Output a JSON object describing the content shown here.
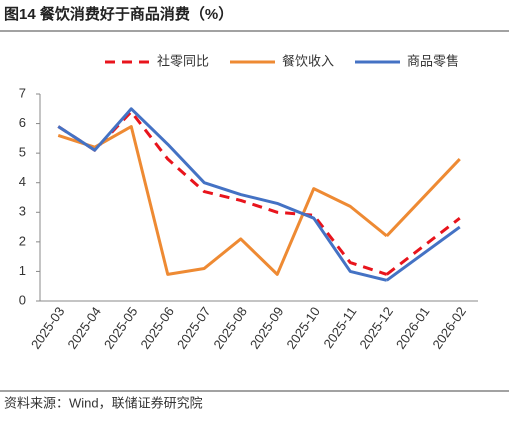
{
  "chart_data": {
    "type": "line",
    "title": "图14 餐饮消费好于商品消费（%）",
    "source": "资料来源：Wind，联储证券研究院",
    "categories": [
      "2025-03",
      "2025-04",
      "2025-05",
      "2025-06",
      "2025-07",
      "2025-08",
      "2025-09",
      "2025-10",
      "2025-11",
      "2025-12",
      "2026-01",
      "2026-02"
    ],
    "series": [
      {
        "name": "社零同比",
        "color": "#e8141c",
        "dash": true,
        "values": [
          5.9,
          5.1,
          6.4,
          4.8,
          3.7,
          3.4,
          3.0,
          2.9,
          1.3,
          0.9,
          null,
          2.8
        ]
      },
      {
        "name": "餐饮收入",
        "color": "#ee8a33",
        "dash": false,
        "values": [
          5.6,
          5.2,
          5.9,
          0.9,
          1.1,
          2.1,
          0.9,
          3.8,
          3.2,
          2.2,
          null,
          4.8
        ]
      },
      {
        "name": "商品零售",
        "color": "#4472c4",
        "dash": false,
        "values": [
          5.9,
          5.1,
          6.5,
          5.3,
          4.0,
          3.6,
          3.3,
          2.8,
          1.0,
          0.7,
          null,
          2.5
        ]
      }
    ],
    "span_gaps": true,
    "ylim": [
      0,
      7
    ],
    "yticks": [
      0,
      1,
      2,
      3,
      4,
      5,
      6,
      7
    ],
    "grid": false,
    "legend": "top"
  }
}
